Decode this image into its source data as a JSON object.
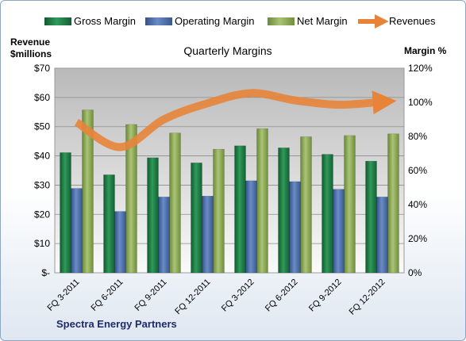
{
  "chart_data": {
    "type": "bar",
    "title": "Quarterly Margins",
    "source_label": "Spectra Energy Partners",
    "left_axis_label": [
      "Revenue",
      "$millions"
    ],
    "right_axis_label": "Margin %",
    "categories": [
      "FQ 3-2011",
      "FQ 6-2011",
      "FQ 9-2011",
      "FQ 12-2011",
      "FQ 3-2012",
      "FQ 6-2012",
      "FQ 9-2012",
      "FQ 12-2012"
    ],
    "left_axis": {
      "min": 0,
      "max": 70,
      "step": 10,
      "ticks": [
        "$-",
        "$10",
        "$20",
        "$30",
        "$40",
        "$50",
        "$60",
        "$70"
      ]
    },
    "right_axis": {
      "min": 0,
      "max": 120,
      "step": 20,
      "ticks": [
        "0%",
        "20%",
        "40%",
        "60%",
        "80%",
        "100%",
        "120%"
      ]
    },
    "legend_position": "top",
    "grid": true,
    "series": [
      {
        "name": "Gross Margin",
        "kind": "bar",
        "axis": "right",
        "color": "#1e7b45",
        "values": [
          70.5,
          57.5,
          67.5,
          64.5,
          74.5,
          73.3,
          69.5,
          65.5
        ]
      },
      {
        "name": "Operating Margin",
        "kind": "bar",
        "axis": "right",
        "color": "#4f6fa8",
        "values": [
          49.5,
          36,
          44.5,
          45,
          54,
          53.5,
          49,
          44.5
        ]
      },
      {
        "name": "Net Margin",
        "kind": "bar",
        "axis": "right",
        "color": "#8aa656",
        "values": [
          95.5,
          87,
          82,
          72.5,
          84.5,
          79.8,
          80.5,
          81.5
        ]
      },
      {
        "name": "Revenues",
        "kind": "line",
        "axis": "left",
        "color": "#e8843a",
        "values": [
          51.5,
          43,
          52.5,
          58,
          61.5,
          59,
          57.5,
          58.5
        ]
      }
    ]
  }
}
